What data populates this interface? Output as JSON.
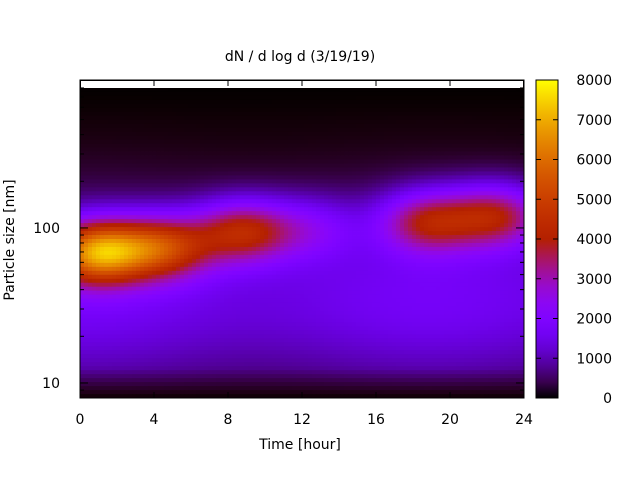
{
  "chart_data": {
    "type": "heatmap",
    "title": "dN / d log d (3/19/19)",
    "xlabel": "Time [hour]",
    "ylabel": "Particle size [nm]",
    "xlim": [
      0,
      24
    ],
    "ylim": [
      8,
      900
    ],
    "yscale": "log",
    "x_ticks": [
      0,
      4,
      8,
      12,
      16,
      20,
      24
    ],
    "y_ticks": [
      10,
      100
    ],
    "colorbar": {
      "range": [
        0,
        8000
      ],
      "ticks": [
        0,
        1000,
        2000,
        3000,
        4000,
        5000,
        6000,
        7000,
        8000
      ],
      "palette": "gnuplot-pm3d (black-purple-red-orange-yellow)"
    },
    "features": [
      {
        "x": 1.0,
        "y_nm": 70,
        "value": 7200
      },
      {
        "x": 4.5,
        "y_nm": 75,
        "value": 5400
      },
      {
        "x": 8.8,
        "y_nm": 95,
        "value": 5000
      },
      {
        "x": 12.5,
        "y_nm": 100,
        "value": 3000
      },
      {
        "x": 18.8,
        "y_nm": 110,
        "value": 4700
      },
      {
        "x": 22.5,
        "y_nm": 120,
        "value": 4800
      }
    ]
  }
}
